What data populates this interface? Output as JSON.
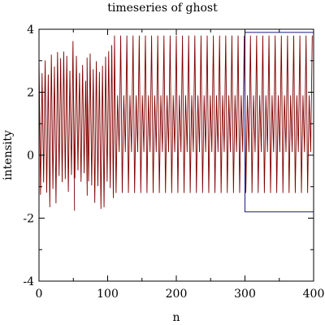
{
  "chart_data": {
    "type": "line",
    "title": "timeseries of ghost",
    "xlabel": "n",
    "ylabel": "intensity",
    "xlim": [
      0,
      400
    ],
    "ylim": [
      -4,
      4
    ],
    "x_ticks": [
      0,
      100,
      200,
      300,
      400
    ],
    "x_tick_labels": [
      "0",
      "100",
      "200",
      "300",
      "400"
    ],
    "y_ticks": [
      -4,
      -2,
      0,
      2,
      4
    ],
    "y_tick_labels": [
      "-4",
      "-2",
      "0",
      "2",
      "4"
    ],
    "grid": false,
    "legend": "none",
    "colors": {
      "series": "#800000",
      "highlight_box": "#1a1a80",
      "axes": "#000000"
    },
    "series": [
      {
        "x_start": 0,
        "x_end": 400,
        "phases": [
          {
            "x_from": 0,
            "x_to": 50,
            "min": -1.8,
            "max": 3.7,
            "period": 4.5
          },
          {
            "x_from": 50,
            "x_to": 70,
            "min": -1.3,
            "max": 3.2,
            "period": 4.5
          },
          {
            "x_from": 70,
            "x_to": 110,
            "min": -1.8,
            "max": 3.8,
            "period": 4.5
          },
          {
            "x_from": 110,
            "x_to": 400,
            "min": -1.2,
            "max": 3.8,
            "period": 4.5,
            "inner_min": 0.1,
            "inner_max": 1.9
          }
        ]
      }
    ],
    "highlight_region": {
      "x": [
        300,
        400
      ],
      "y": [
        -1.8,
        3.9
      ]
    }
  }
}
